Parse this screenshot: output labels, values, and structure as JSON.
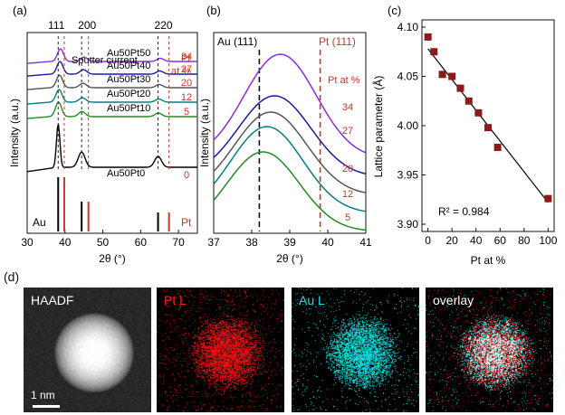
{
  "chart_data": [
    {
      "type": "line",
      "panel_label": "(a)",
      "xlabel": "2θ (°)",
      "ylabel": "Intensity (a.u.)",
      "xlim": [
        30,
        75
      ],
      "xticks": [
        "30",
        "40",
        "50",
        "60",
        "70"
      ],
      "peak_labels": [
        {
          "text": "111",
          "x": 38.2
        },
        {
          "text": "200",
          "x": 44.4
        },
        {
          "text": "220",
          "x": 64.6
        }
      ],
      "sputter_label": "Sputter current",
      "pt_header": "Pt\nat %",
      "series": [
        {
          "name": "Au50Pt50",
          "pt": "34",
          "color": "#8a2be2"
        },
        {
          "name": "Au50Pt40",
          "pt": "27",
          "color": "#1a1aa8"
        },
        {
          "name": "Au50Pt30",
          "pt": "20",
          "color": "#555555"
        },
        {
          "name": "Au50Pt20",
          "pt": "12",
          "color": "#008080"
        },
        {
          "name": "Au50Pt10",
          "pt": "5",
          "color": "#228b22"
        },
        {
          "name": "Au50Pt0",
          "pt": "0",
          "color": "#000000"
        }
      ],
      "reference_au": {
        "label": "Au",
        "peaks": [
          38.2,
          44.4,
          64.6
        ],
        "heights": [
          1.0,
          0.55,
          0.35
        ]
      },
      "reference_pt": {
        "label": "Pt",
        "peaks": [
          39.8,
          46.2,
          67.5
        ],
        "heights": [
          1.0,
          0.55,
          0.35
        ]
      }
    },
    {
      "type": "line",
      "panel_label": "(b)",
      "xlabel": "2θ (°)",
      "ylabel": "Intensity (a.u.)",
      "xlim": [
        37,
        41
      ],
      "xticks": [
        "37",
        "38",
        "39",
        "40",
        "41"
      ],
      "au_ref_label": "Au (111)",
      "pt_ref_label": "Pt (111)",
      "au_ref_x": 38.2,
      "pt_ref_x": 39.8,
      "pt_header": "Pt at %",
      "series": [
        {
          "name": "34",
          "center": 38.75,
          "color": "#8a2be2"
        },
        {
          "name": "27",
          "center": 38.6,
          "color": "#1a1aa8"
        },
        {
          "name": "20",
          "center": 38.5,
          "color": "#555555"
        },
        {
          "name": "12",
          "center": 38.4,
          "color": "#008080"
        },
        {
          "name": "5",
          "center": 38.3,
          "color": "#228b22"
        }
      ]
    },
    {
      "type": "scatter",
      "panel_label": "(c)",
      "xlabel": "Pt at %",
      "ylabel": "Lattice parameter (Å)",
      "xlim": [
        -5,
        105
      ],
      "ylim": [
        3.9,
        4.1
      ],
      "xticks": [
        "0",
        "20",
        "40",
        "60",
        "80",
        "100"
      ],
      "yticks": [
        "3.90",
        "3.95",
        "4.00",
        "4.05",
        "4.10"
      ],
      "points": [
        {
          "x": 0,
          "y": 4.09
        },
        {
          "x": 5,
          "y": 4.075
        },
        {
          "x": 12,
          "y": 4.052
        },
        {
          "x": 20,
          "y": 4.05
        },
        {
          "x": 27,
          "y": 4.038
        },
        {
          "x": 34,
          "y": 4.025
        },
        {
          "x": 42,
          "y": 4.013
        },
        {
          "x": 50,
          "y": 3.998
        },
        {
          "x": 58,
          "y": 3.978
        },
        {
          "x": 100,
          "y": 3.926
        }
      ],
      "fit": {
        "x": [
          0,
          100
        ],
        "y": [
          4.078,
          3.922
        ]
      },
      "annotation": "R² = 0.984",
      "marker_color": "#8b1a1a"
    }
  ],
  "panel_d": {
    "panel_label": "(d)",
    "images": [
      {
        "label": "HAADF",
        "label_color": "#ffffff",
        "colors": "#ffffff"
      },
      {
        "label": "Pt  L",
        "label_color": "#ff2020",
        "colors": "#ff2020"
      },
      {
        "label": "Au L",
        "label_color": "#20e0e0",
        "colors": "#20e0e0"
      },
      {
        "label": "overlay",
        "label_color": "#ffffff",
        "colors": "overlay"
      }
    ],
    "scale_bar": "1 nm"
  },
  "colors": {
    "red_ref": "#c0392b",
    "axis": "#111111"
  }
}
